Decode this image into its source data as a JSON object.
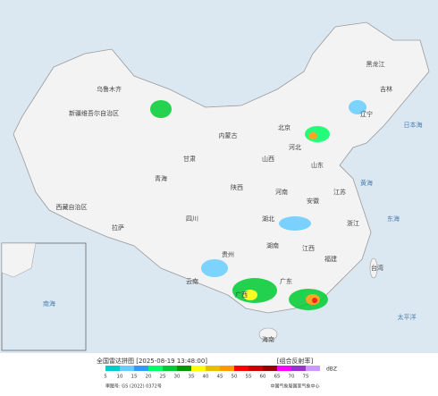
{
  "title": "全国雷达拼图 [2025-08-19 13:48:00]",
  "product": "[组合反射率]",
  "legend": {
    "unit": "dBZ",
    "items": [
      {
        "value": 5,
        "color": "#00cccc"
      },
      {
        "value": 10,
        "color": "#66ccff"
      },
      {
        "value": 15,
        "color": "#3399ff"
      },
      {
        "value": 20,
        "color": "#00ff66"
      },
      {
        "value": 25,
        "color": "#00cc33"
      },
      {
        "value": 30,
        "color": "#009900"
      },
      {
        "value": 35,
        "color": "#ffff00"
      },
      {
        "value": 40,
        "color": "#e6c000"
      },
      {
        "value": 45,
        "color": "#ff9900"
      },
      {
        "value": 50,
        "color": "#ff0000"
      },
      {
        "value": 55,
        "color": "#cc0000"
      },
      {
        "value": 60,
        "color": "#990000"
      },
      {
        "value": 65,
        "color": "#ff00ff"
      },
      {
        "value": 70,
        "color": "#9933cc"
      },
      {
        "value": 75,
        "color": "#cc99ff"
      }
    ]
  },
  "footer": {
    "approval": "审图号: GS (2022) 0372号",
    "source": "中国气象局国家气象中心"
  },
  "map_labels": [
    "新疆维吾尔自治区",
    "乌鲁木齐",
    "西藏自治区",
    "拉萨",
    "青海",
    "甘肃",
    "内蒙古",
    "黑龙江",
    "吉林",
    "辽宁",
    "北京",
    "河北",
    "山西",
    "山东",
    "陕西",
    "河南",
    "四川",
    "湖北",
    "安徽",
    "江苏",
    "浙江",
    "湖南",
    "江西",
    "贵州",
    "云南",
    "广西",
    "广东",
    "福建",
    "台湾",
    "海南",
    "黄海",
    "东海",
    "日本海",
    "太平洋",
    "南海"
  ]
}
